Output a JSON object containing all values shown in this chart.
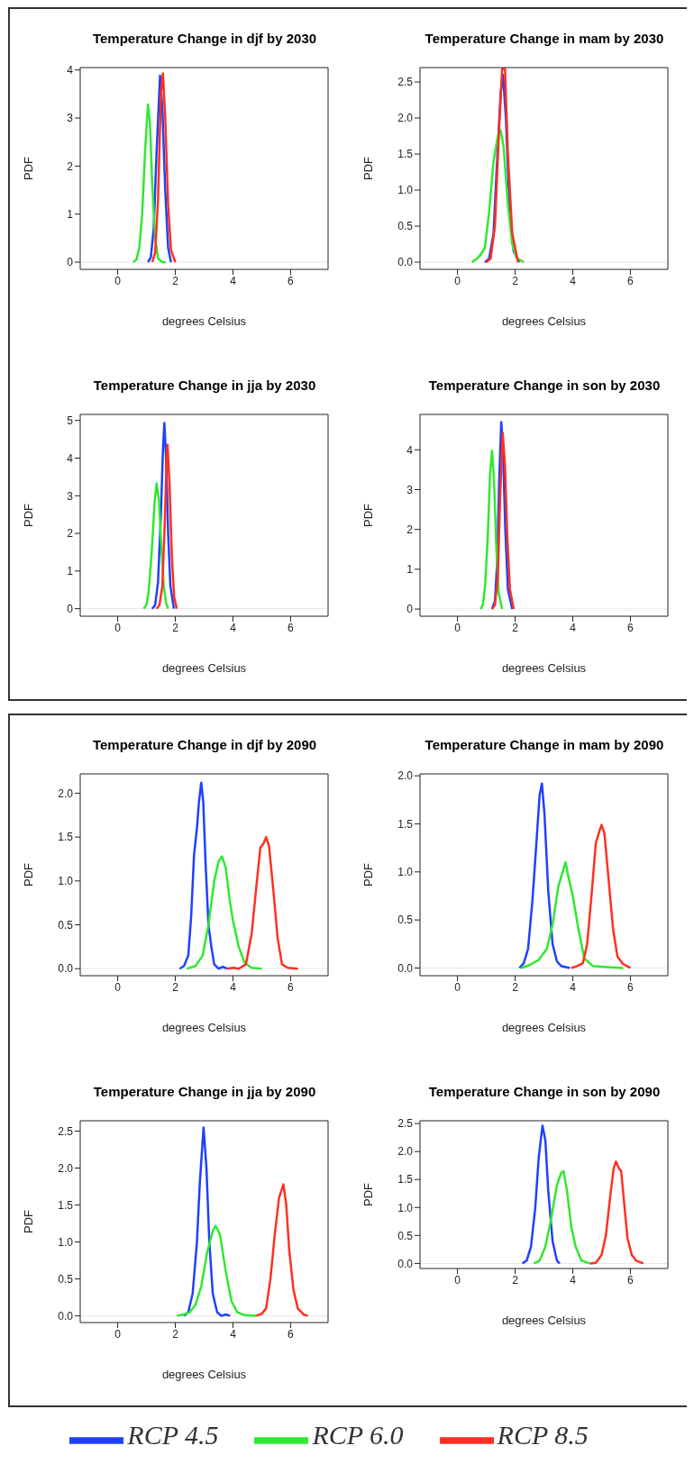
{
  "chart_data": [
    {
      "type": "line",
      "title": "Temperature Change in djf by 2030",
      "xlabel": "degrees Celsius",
      "ylabel": "PDF",
      "xlim": [
        -1.3,
        7.3
      ],
      "xticks": [
        0,
        2,
        4,
        6
      ],
      "ylim": [
        -0.15,
        4.05
      ],
      "yticks": [
        0,
        1,
        2,
        3,
        4
      ],
      "ref_lines": [
        {
          "axis": "y",
          "value": 0,
          "color": "#e6e6e6"
        }
      ],
      "series": [
        {
          "color": "#2040ff",
          "x": [
            1.05,
            1.15,
            1.25,
            1.35,
            1.47,
            1.55,
            1.65,
            1.75,
            1.85
          ],
          "values": [
            0,
            0.1,
            0.7,
            2.3,
            3.88,
            3.2,
            1.5,
            0.3,
            0
          ]
        },
        {
          "color": "#30e830",
          "x": [
            0.53,
            0.65,
            0.75,
            0.85,
            0.95,
            1.05,
            1.12,
            1.2,
            1.3,
            1.4,
            1.55,
            1.67
          ],
          "values": [
            0,
            0.05,
            0.3,
            1.0,
            2.3,
            3.28,
            2.9,
            1.6,
            0.5,
            0.08,
            0,
            0
          ]
        },
        {
          "color": "#ff3020",
          "x": [
            1.2,
            1.3,
            1.4,
            1.5,
            1.57,
            1.65,
            1.75,
            1.85,
            2.0
          ],
          "values": [
            0,
            0.2,
            1.3,
            3.5,
            3.93,
            3.0,
            1.2,
            0.25,
            0
          ]
        }
      ]
    },
    {
      "type": "line",
      "title": "Temperature Change in mam by 2030",
      "xlabel": "degrees Celsius",
      "ylabel": "PDF",
      "xlim": [
        -1.3,
        7.3
      ],
      "xticks": [
        0,
        2,
        4,
        6
      ],
      "ylim": [
        -0.1,
        2.7
      ],
      "yticks": [
        {
          "value": 0,
          "label": "0.0"
        },
        {
          "value": 0.5,
          "label": "0.5"
        },
        {
          "value": 1,
          "label": "1.0"
        },
        {
          "value": 1.5,
          "label": "1.5"
        },
        {
          "value": 2,
          "label": "2.0"
        },
        {
          "value": 2.5,
          "label": "2.5"
        }
      ],
      "ref_lines": [
        {
          "axis": "y",
          "value": 0,
          "color": "#e6e6e6"
        }
      ],
      "series": [
        {
          "color": "#2040ff",
          "x": [
            0.95,
            1.1,
            1.25,
            1.4,
            1.5,
            1.58,
            1.68,
            1.8,
            1.95,
            2.15
          ],
          "values": [
            0,
            0.05,
            0.4,
            1.6,
            2.35,
            2.6,
            2.0,
            0.8,
            0.15,
            0
          ]
        },
        {
          "color": "#30e830",
          "x": [
            0.5,
            0.65,
            0.8,
            0.95,
            1.1,
            1.25,
            1.4,
            1.5,
            1.6,
            1.75,
            1.9,
            2.05,
            2.3
          ],
          "values": [
            0,
            0.04,
            0.1,
            0.2,
            0.7,
            1.4,
            1.75,
            1.83,
            1.6,
            0.8,
            0.25,
            0.06,
            0
          ]
        },
        {
          "color": "#ff3020",
          "x": [
            1.0,
            1.15,
            1.3,
            1.45,
            1.55,
            1.65,
            1.75,
            1.9,
            2.1
          ],
          "values": [
            0,
            0.05,
            0.5,
            1.9,
            2.68,
            2.68,
            1.5,
            0.4,
            0
          ]
        }
      ]
    },
    {
      "type": "line",
      "title": "Temperature Change in jja by 2030",
      "xlabel": "degrees Celsius",
      "ylabel": "PDF",
      "xlim": [
        -1.3,
        7.3
      ],
      "xticks": [
        0,
        2,
        4,
        6
      ],
      "ylim": [
        -0.2,
        5.16
      ],
      "yticks": [
        0,
        1,
        2,
        3,
        4,
        5
      ],
      "ref_lines": [
        {
          "axis": "y",
          "value": 0,
          "color": "#e6e6e6"
        }
      ],
      "series": [
        {
          "color": "#2040ff",
          "x": [
            1.2,
            1.3,
            1.4,
            1.5,
            1.57,
            1.62,
            1.68,
            1.75,
            1.83,
            1.95
          ],
          "values": [
            0,
            0.1,
            0.7,
            2.5,
            4.2,
            4.93,
            4.0,
            2.0,
            0.6,
            0
          ]
        },
        {
          "color": "#30e830",
          "x": [
            0.9,
            1.0,
            1.08,
            1.18,
            1.28,
            1.35,
            1.43,
            1.52,
            1.6,
            1.68,
            1.75
          ],
          "values": [
            0,
            0.1,
            0.5,
            1.5,
            2.8,
            3.33,
            2.9,
            1.6,
            0.6,
            0.15,
            0
          ]
        },
        {
          "color": "#ff3020",
          "x": [
            1.35,
            1.45,
            1.55,
            1.63,
            1.7,
            1.73,
            1.8,
            1.88,
            1.96,
            2.05
          ],
          "values": [
            0,
            0.1,
            0.6,
            2.2,
            4.0,
            4.35,
            3.3,
            1.4,
            0.3,
            0
          ]
        }
      ]
    },
    {
      "type": "line",
      "title": "Temperature Change in son by 2030",
      "xlabel": "degrees Celsius",
      "ylabel": "PDF",
      "xlim": [
        -1.3,
        7.3
      ],
      "xticks": [
        0,
        2,
        4,
        6
      ],
      "ylim": [
        -0.18,
        4.89
      ],
      "yticks": [
        0,
        1,
        2,
        3,
        4
      ],
      "ref_lines": [
        {
          "axis": "y",
          "value": 0,
          "color": "#e6e6e6"
        }
      ],
      "series": [
        {
          "color": "#2040ff",
          "x": [
            1.2,
            1.3,
            1.38,
            1.45,
            1.52,
            1.58,
            1.66,
            1.75,
            1.9
          ],
          "values": [
            0,
            0.2,
            1.2,
            3.3,
            4.7,
            4.0,
            2.0,
            0.5,
            0
          ]
        },
        {
          "color": "#30e830",
          "x": [
            0.8,
            0.88,
            0.96,
            1.05,
            1.13,
            1.2,
            1.27,
            1.35,
            1.43,
            1.55
          ],
          "values": [
            0,
            0.1,
            0.6,
            1.8,
            3.4,
            3.98,
            3.2,
            1.5,
            0.4,
            0
          ]
        },
        {
          "color": "#ff3020",
          "x": [
            1.2,
            1.3,
            1.4,
            1.48,
            1.57,
            1.65,
            1.73,
            1.82,
            1.95
          ],
          "values": [
            0,
            0.1,
            0.8,
            2.8,
            4.43,
            3.6,
            1.8,
            0.5,
            0
          ]
        }
      ]
    },
    {
      "type": "line",
      "title": "Temperature Change in djf by 2090",
      "xlabel": "degrees Celsius",
      "ylabel": "PDF",
      "xlim": [
        -1.3,
        7.3
      ],
      "xticks": [
        0,
        2,
        4,
        6
      ],
      "ylim": [
        -0.08,
        2.22
      ],
      "yticks": [
        {
          "value": 0,
          "label": "0.0"
        },
        {
          "value": 0.5,
          "label": "0.5"
        },
        {
          "value": 1,
          "label": "1.0"
        },
        {
          "value": 1.5,
          "label": "1.5"
        },
        {
          "value": 2,
          "label": "2.0"
        }
      ],
      "ref_lines": [
        {
          "axis": "y",
          "value": 0,
          "color": "#e6e6e6"
        }
      ],
      "series": [
        {
          "color": "#2040ff",
          "x": [
            2.15,
            2.3,
            2.45,
            2.55,
            2.65,
            2.75,
            2.82,
            2.9,
            2.97,
            3.05,
            3.15,
            3.25,
            3.35,
            3.5,
            3.65,
            3.8
          ],
          "values": [
            0,
            0.03,
            0.15,
            0.6,
            1.3,
            1.6,
            1.9,
            2.12,
            1.9,
            1.2,
            0.5,
            0.25,
            0.05,
            0,
            0.02,
            0
          ]
        },
        {
          "color": "#30e830",
          "x": [
            2.4,
            2.7,
            2.95,
            3.15,
            3.35,
            3.5,
            3.62,
            3.75,
            3.9,
            4.0,
            4.2,
            4.4,
            4.65,
            5.0
          ],
          "values": [
            0,
            0.03,
            0.15,
            0.5,
            1.0,
            1.22,
            1.28,
            1.15,
            0.75,
            0.55,
            0.25,
            0.07,
            0.01,
            0
          ]
        },
        {
          "color": "#ff3020",
          "x": [
            3.8,
            4.0,
            4.2,
            4.45,
            4.65,
            4.8,
            4.95,
            5.05,
            5.15,
            5.25,
            5.4,
            5.55,
            5.7,
            5.9,
            6.25
          ],
          "values": [
            0,
            0.01,
            0,
            0.05,
            0.4,
            0.9,
            1.38,
            1.42,
            1.5,
            1.4,
            0.9,
            0.35,
            0.05,
            0.01,
            0
          ]
        }
      ]
    },
    {
      "type": "line",
      "title": "Temperature Change in mam by 2090",
      "xlabel": "degrees Celsius",
      "ylabel": "PDF",
      "xlim": [
        -1.3,
        7.3
      ],
      "xticks": [
        0,
        2,
        4,
        6
      ],
      "ylim": [
        -0.08,
        2.02
      ],
      "yticks": [
        {
          "value": 0,
          "label": "0.0"
        },
        {
          "value": 0.5,
          "label": "0.5"
        },
        {
          "value": 1,
          "label": "1.0"
        },
        {
          "value": 1.5,
          "label": "1.5"
        },
        {
          "value": 2,
          "label": "2.0"
        }
      ],
      "ref_lines": [
        {
          "axis": "y",
          "value": 0,
          "color": "#e6e6e6"
        }
      ],
      "series": [
        {
          "color": "#2040ff",
          "x": [
            2.15,
            2.3,
            2.45,
            2.6,
            2.75,
            2.85,
            2.93,
            3.02,
            3.15,
            3.3,
            3.45,
            3.6,
            3.9
          ],
          "values": [
            0,
            0.05,
            0.2,
            0.7,
            1.35,
            1.8,
            1.92,
            1.6,
            0.8,
            0.25,
            0.07,
            0.02,
            0
          ]
        },
        {
          "color": "#30e830",
          "x": [
            2.2,
            2.5,
            2.8,
            3.1,
            3.3,
            3.5,
            3.65,
            3.75,
            3.85,
            4.0,
            4.2,
            4.4,
            4.7,
            5.2,
            5.75
          ],
          "values": [
            0,
            0.03,
            0.08,
            0.2,
            0.45,
            0.85,
            1.0,
            1.1,
            0.95,
            0.75,
            0.4,
            0.1,
            0.02,
            0.01,
            0
          ]
        },
        {
          "color": "#ff3020",
          "x": [
            3.95,
            4.15,
            4.35,
            4.5,
            4.65,
            4.8,
            4.9,
            5.0,
            5.1,
            5.25,
            5.4,
            5.55,
            5.75,
            6.0
          ],
          "values": [
            0,
            0.02,
            0.05,
            0.25,
            0.75,
            1.3,
            1.4,
            1.49,
            1.4,
            0.9,
            0.4,
            0.12,
            0.04,
            0
          ]
        }
      ]
    },
    {
      "type": "line",
      "title": "Temperature Change in jja by 2090",
      "xlabel": "degrees Celsius",
      "ylabel": "PDF",
      "xlim": [
        -1.3,
        7.3
      ],
      "xticks": [
        0,
        2,
        4,
        6
      ],
      "ylim": [
        -0.09,
        2.64
      ],
      "yticks": [
        {
          "value": 0,
          "label": "0.0"
        },
        {
          "value": 0.5,
          "label": "0.5"
        },
        {
          "value": 1,
          "label": "1.0"
        },
        {
          "value": 1.5,
          "label": "1.5"
        },
        {
          "value": 2,
          "label": "2.0"
        },
        {
          "value": 2.5,
          "label": "2.5"
        }
      ],
      "ref_lines": [
        {
          "axis": "y",
          "value": 0,
          "color": "#e6e6e6"
        }
      ],
      "series": [
        {
          "color": "#2040ff",
          "x": [
            2.3,
            2.45,
            2.6,
            2.75,
            2.85,
            2.98,
            3.08,
            3.18,
            3.3,
            3.45,
            3.6,
            3.75,
            3.9
          ],
          "values": [
            0,
            0.05,
            0.3,
            1.0,
            1.8,
            2.55,
            2.0,
            1.0,
            0.3,
            0.05,
            0,
            0.02,
            0
          ]
        },
        {
          "color": "#30e830",
          "x": [
            2.05,
            2.3,
            2.5,
            2.7,
            2.9,
            3.1,
            3.3,
            3.4,
            3.55,
            3.75,
            3.95,
            4.15,
            4.4,
            4.8
          ],
          "values": [
            0,
            0.02,
            0.05,
            0.15,
            0.4,
            0.85,
            1.15,
            1.22,
            1.1,
            0.6,
            0.2,
            0.05,
            0.01,
            0
          ]
        },
        {
          "color": "#ff3020",
          "x": [
            4.8,
            5.0,
            5.15,
            5.3,
            5.45,
            5.6,
            5.75,
            5.85,
            5.95,
            6.1,
            6.25,
            6.45,
            6.6
          ],
          "values": [
            0,
            0.03,
            0.1,
            0.5,
            1.1,
            1.6,
            1.78,
            1.5,
            0.9,
            0.35,
            0.1,
            0.02,
            0
          ]
        }
      ]
    },
    {
      "type": "line",
      "title": "Temperature Change in son by 2090",
      "xlabel": "degrees Celsius",
      "ylabel": "PDF",
      "xlim": [
        -1.3,
        7.3
      ],
      "xticks": [
        0,
        2,
        4,
        6
      ],
      "ylim": [
        -0.09,
        2.55
      ],
      "yticks": [
        {
          "value": 0,
          "label": "0.0"
        },
        {
          "value": 0.5,
          "label": "0.5"
        },
        {
          "value": 1,
          "label": "1.0"
        },
        {
          "value": 1.5,
          "label": "1.5"
        },
        {
          "value": 2,
          "label": "2.0"
        },
        {
          "value": 2.5,
          "label": "2.5"
        }
      ],
      "ref_lines": [
        {
          "axis": "y",
          "value": 0,
          "color": "#e6e6e6"
        }
      ],
      "legend": "bottom",
      "series": [
        {
          "name": "RCP 4.5",
          "color": "#2040ff",
          "x": [
            2.25,
            2.4,
            2.55,
            2.7,
            2.82,
            2.95,
            3.05,
            3.15,
            3.3,
            3.45,
            3.55
          ],
          "values": [
            0,
            0.05,
            0.3,
            1.0,
            1.9,
            2.46,
            2.2,
            1.3,
            0.4,
            0.05,
            0
          ]
        },
        {
          "name": "RCP 6.0",
          "color": "#30e830",
          "x": [
            2.65,
            2.85,
            3.05,
            3.25,
            3.45,
            3.6,
            3.68,
            3.8,
            3.95,
            4.1,
            4.3,
            4.6
          ],
          "values": [
            0,
            0.05,
            0.3,
            0.8,
            1.4,
            1.62,
            1.65,
            1.3,
            0.65,
            0.3,
            0.05,
            0
          ]
        },
        {
          "name": "RCP 8.5",
          "color": "#ff3020",
          "x": [
            4.6,
            4.8,
            5.0,
            5.15,
            5.3,
            5.42,
            5.5,
            5.6,
            5.68,
            5.78,
            5.9,
            6.05,
            6.2,
            6.45
          ],
          "values": [
            0,
            0.01,
            0.15,
            0.5,
            1.2,
            1.7,
            1.82,
            1.7,
            1.65,
            1.1,
            0.45,
            0.15,
            0.05,
            0
          ]
        }
      ]
    }
  ]
}
